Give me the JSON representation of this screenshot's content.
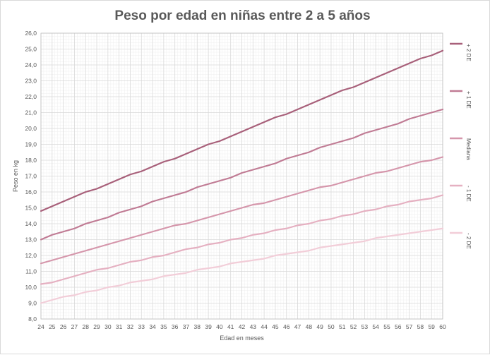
{
  "chart_data": {
    "type": "line",
    "title": "Peso por edad en niñas entre 2 a 5 años",
    "xlabel": "Edad en meses",
    "ylabel": "Peso en kg",
    "ylim": [
      8.0,
      26.0
    ],
    "ytick_step": 1.0,
    "ytick_decimals": 1,
    "grid": true,
    "legend_position": "right",
    "x": [
      24,
      25,
      26,
      27,
      28,
      29,
      30,
      31,
      32,
      33,
      34,
      35,
      36,
      37,
      38,
      39,
      40,
      41,
      42,
      43,
      44,
      45,
      46,
      47,
      48,
      49,
      50,
      51,
      52,
      53,
      54,
      55,
      56,
      57,
      58,
      59,
      60
    ],
    "series": [
      {
        "name": "+ 2 DE",
        "color": "#a8607a",
        "values": [
          14.8,
          15.1,
          15.4,
          15.7,
          16.0,
          16.2,
          16.5,
          16.8,
          17.1,
          17.3,
          17.6,
          17.9,
          18.1,
          18.4,
          18.7,
          19.0,
          19.2,
          19.5,
          19.8,
          20.1,
          20.4,
          20.7,
          20.9,
          21.2,
          21.5,
          21.8,
          22.1,
          22.4,
          22.6,
          22.9,
          23.2,
          23.5,
          23.8,
          24.1,
          24.4,
          24.6,
          24.9
        ]
      },
      {
        "name": "+ 1 DE",
        "color": "#c07b94",
        "values": [
          13.0,
          13.3,
          13.5,
          13.7,
          14.0,
          14.2,
          14.4,
          14.7,
          14.9,
          15.1,
          15.4,
          15.6,
          15.8,
          16.0,
          16.3,
          16.5,
          16.7,
          16.9,
          17.2,
          17.4,
          17.6,
          17.8,
          18.1,
          18.3,
          18.5,
          18.8,
          19.0,
          19.2,
          19.4,
          19.7,
          19.9,
          20.1,
          20.3,
          20.6,
          20.8,
          21.0,
          21.2
        ]
      },
      {
        "name": "Mediana",
        "color": "#d596ab",
        "values": [
          11.5,
          11.7,
          11.9,
          12.1,
          12.3,
          12.5,
          12.7,
          12.9,
          13.1,
          13.3,
          13.5,
          13.7,
          13.9,
          14.0,
          14.2,
          14.4,
          14.6,
          14.8,
          15.0,
          15.2,
          15.3,
          15.5,
          15.7,
          15.9,
          16.1,
          16.3,
          16.4,
          16.6,
          16.8,
          17.0,
          17.2,
          17.3,
          17.5,
          17.7,
          17.9,
          18.0,
          18.2
        ]
      },
      {
        "name": "- 1 DE",
        "color": "#e5b0c1",
        "values": [
          10.2,
          10.3,
          10.5,
          10.7,
          10.9,
          11.1,
          11.2,
          11.4,
          11.6,
          11.7,
          11.9,
          12.0,
          12.2,
          12.4,
          12.5,
          12.7,
          12.8,
          13.0,
          13.1,
          13.3,
          13.4,
          13.6,
          13.7,
          13.9,
          14.0,
          14.2,
          14.3,
          14.5,
          14.6,
          14.8,
          14.9,
          15.1,
          15.2,
          15.4,
          15.5,
          15.6,
          15.8
        ]
      },
      {
        "name": "- 2 DE",
        "color": "#f2cdd8",
        "values": [
          9.0,
          9.2,
          9.4,
          9.5,
          9.7,
          9.8,
          10.0,
          10.1,
          10.3,
          10.4,
          10.5,
          10.7,
          10.8,
          10.9,
          11.1,
          11.2,
          11.3,
          11.5,
          11.6,
          11.7,
          11.8,
          12.0,
          12.1,
          12.2,
          12.3,
          12.5,
          12.6,
          12.7,
          12.8,
          12.9,
          13.1,
          13.2,
          13.3,
          13.4,
          13.5,
          13.6,
          13.7
        ]
      }
    ]
  },
  "colors": {
    "text": "#595959",
    "grid_major": "#d9d9d9",
    "grid_minor": "#efefef",
    "axis": "#bfbfbf"
  }
}
